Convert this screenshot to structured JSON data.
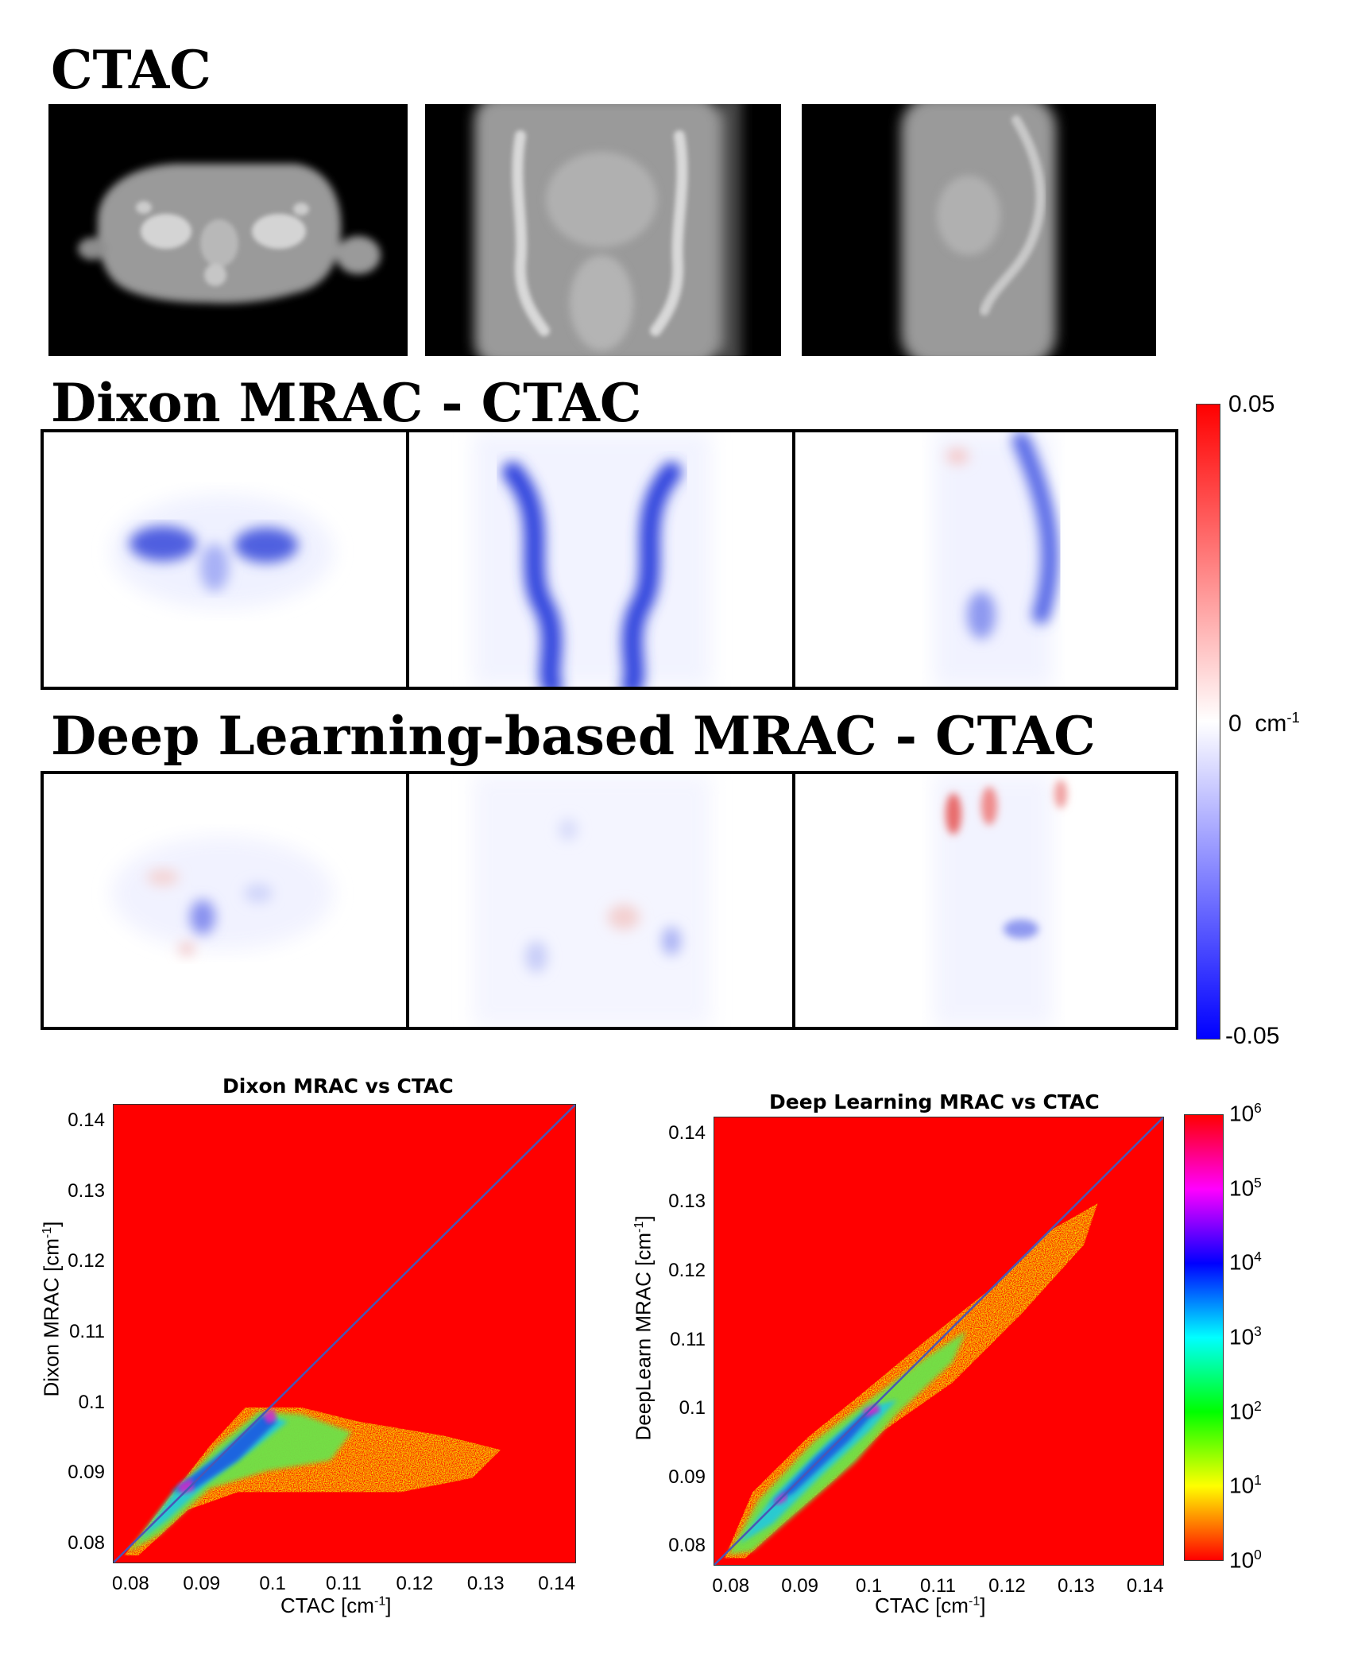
{
  "sections": {
    "ctac_title": "CTAC",
    "dixon_title": "Dixon MRAC - CTAC",
    "deep_title": "Deep Learning-based MRAC - CTAC"
  },
  "diff_colorbar": {
    "max_label": "0.05",
    "mid_label": "0",
    "unit_base": "cm",
    "unit_exp": "-1",
    "min_label": "-0.05",
    "colors": {
      "max": "#ff0000",
      "mid": "#ffffff",
      "min": "#0000ff"
    }
  },
  "density_colorbar": {
    "base": "10",
    "exponents": [
      "6",
      "5",
      "4",
      "3",
      "2",
      "1",
      "0"
    ],
    "colors": [
      "#ff0000",
      "#ffff00",
      "#00ff00",
      "#00ffff",
      "#0000ff",
      "#ff00ff",
      "#ff0000"
    ]
  },
  "chart_data": [
    {
      "type": "heatmap",
      "title": "Dixon MRAC vs CTAC",
      "xlabel_base": "CTAC [cm",
      "xlabel_exp": "-1",
      "xlabel_end": "]",
      "ylabel_base": "Dixon MRAC [cm",
      "ylabel_exp": "-1",
      "ylabel_end": "]",
      "xlim": [
        0.0775,
        0.1425
      ],
      "ylim": [
        0.0775,
        0.1425
      ],
      "xticks": [
        "0.08",
        "0.09",
        "0.1",
        "0.11",
        "0.12",
        "0.13",
        "0.14"
      ],
      "yticks": [
        "0.14",
        "0.13",
        "0.12",
        "0.11",
        "0.1",
        "0.09",
        "0.08"
      ],
      "identity_line": true,
      "background": "#ff0000"
    },
    {
      "type": "heatmap",
      "title": "Deep Learning MRAC vs CTAC",
      "xlabel_base": "CTAC [cm",
      "xlabel_exp": "-1",
      "xlabel_end": "]",
      "ylabel_base": "DeepLearn MRAC [cm",
      "ylabel_exp": "-1",
      "ylabel_end": "]",
      "xlim": [
        0.0775,
        0.1425
      ],
      "ylim": [
        0.0775,
        0.1425
      ],
      "xticks": [
        "0.08",
        "0.09",
        "0.1",
        "0.11",
        "0.12",
        "0.13",
        "0.14"
      ],
      "yticks": [
        "0.14",
        "0.13",
        "0.12",
        "0.11",
        "0.1",
        "0.09",
        "0.08"
      ],
      "identity_line": true,
      "background": "#ff0000"
    }
  ]
}
